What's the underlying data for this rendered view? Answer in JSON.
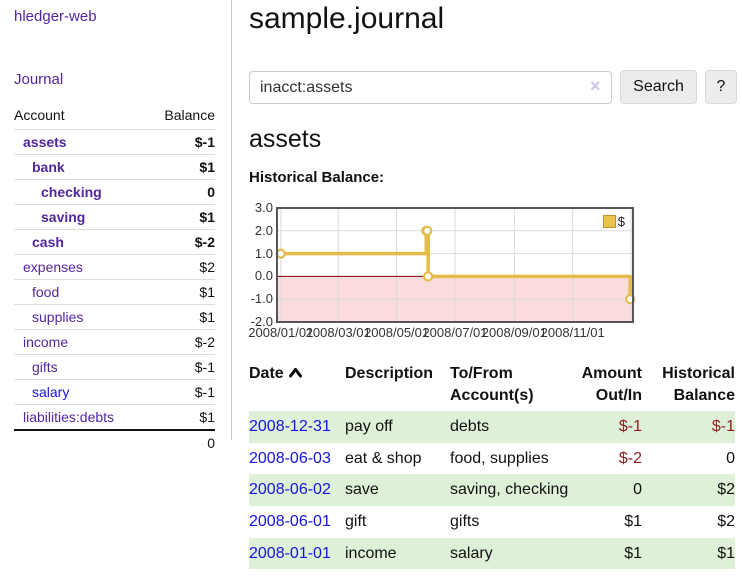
{
  "colors": {
    "purple": "#5326a0",
    "blue": "#1414dd",
    "neg_strong": "#8b0000",
    "neg_light": "#c9908e",
    "row_green": "#dff0d8",
    "chart_line": "#e3bd49",
    "neg_fill": "#fbdcdc",
    "zero_line": "#8b0000",
    "grid": "#d9d9d9",
    "chart_border": "#56565a"
  },
  "sidebar": {
    "app_title": "hledger-web",
    "nav_journal": "Journal",
    "accounts": {
      "col_account": "Account",
      "col_balance": "Balance",
      "rows": [
        {
          "name": "assets",
          "indent": 1,
          "bold": true,
          "link": "purple",
          "balance": "$-1",
          "bal_cls": "neg-strong"
        },
        {
          "name": "bank",
          "indent": 2,
          "bold": true,
          "link": "purple",
          "balance": "$1",
          "bal_cls": ""
        },
        {
          "name": "checking",
          "indent": 3,
          "bold": true,
          "link": "purple",
          "balance": "0",
          "bal_cls": ""
        },
        {
          "name": "saving",
          "indent": 3,
          "bold": true,
          "link": "purple",
          "balance": "$1",
          "bal_cls": ""
        },
        {
          "name": "cash",
          "indent": 2,
          "bold": true,
          "link": "purple",
          "balance": "$-2",
          "bal_cls": "neg-strong"
        },
        {
          "name": "expenses",
          "indent": 1,
          "bold": false,
          "link": "purple",
          "balance": "$2",
          "bal_cls": ""
        },
        {
          "name": "food",
          "indent": 2,
          "bold": false,
          "link": "purple",
          "balance": "$1",
          "bal_cls": ""
        },
        {
          "name": "supplies",
          "indent": 2,
          "bold": false,
          "link": "purple",
          "balance": "$1",
          "bal_cls": ""
        },
        {
          "name": "income",
          "indent": 1,
          "bold": false,
          "link": "purple",
          "balance": "$-2",
          "bal_cls": "neg-light"
        },
        {
          "name": "gifts",
          "indent": 2,
          "bold": false,
          "link": "purple",
          "balance": "$-1",
          "bal_cls": "neg-light"
        },
        {
          "name": "salary",
          "indent": 2,
          "bold": false,
          "link": "blue",
          "balance": "$-1",
          "bal_cls": "neg-light"
        },
        {
          "name": "liabilities:debts",
          "indent": 1,
          "bold": false,
          "link": "purple",
          "balance": "$1",
          "bal_cls": ""
        }
      ],
      "total": "0"
    }
  },
  "main": {
    "title": "sample.journal",
    "search": {
      "value": "inacct:assets",
      "clear": "×",
      "button": "Search",
      "help": "?"
    },
    "account_heading": "assets",
    "section_label": "Historical Balance:"
  },
  "chart_data": {
    "type": "line",
    "step": true,
    "title": "Historical Balance",
    "legend": "$",
    "legend_position": "top-right",
    "grid": true,
    "ylim": [
      -2,
      3
    ],
    "x_domain": [
      "2007-12-28",
      "2009-01-03"
    ],
    "series": [
      {
        "name": "$",
        "points": [
          [
            "2008-01-01",
            1
          ],
          [
            "2008-06-01",
            2
          ],
          [
            "2008-06-02",
            2
          ],
          [
            "2008-06-03",
            0
          ],
          [
            "2008-12-31",
            -1
          ]
        ]
      }
    ],
    "y_ticks": [
      {
        "v": 3,
        "label": "3.0"
      },
      {
        "v": 2,
        "label": "2.0"
      },
      {
        "v": 1,
        "label": "1.0"
      },
      {
        "v": 0,
        "label": "0.0"
      },
      {
        "v": -1,
        "label": "-1.0"
      },
      {
        "v": -2,
        "label": "-2.0"
      }
    ],
    "x_ticks": [
      {
        "date": "2008-01-01",
        "label": "2008/01/01"
      },
      {
        "date": "2008-03-01",
        "label": "2008/03/01"
      },
      {
        "date": "2008-05-01",
        "label": "2008/05/01"
      },
      {
        "date": "2008-07-01",
        "label": "2008/07/01"
      },
      {
        "date": "2008-09-01",
        "label": "2008/09/01"
      },
      {
        "date": "2008-11-01",
        "label": "2008/11/01"
      }
    ],
    "extra_gridlines": [
      "2009-01-01"
    ],
    "negative_region_shaded": true
  },
  "transactions": {
    "headers": {
      "date": "Date",
      "description": "Description",
      "accounts": "To/From Account(s)",
      "amount": "Amount Out/In",
      "balance": "Historical Balance"
    },
    "rows": [
      {
        "date": "2008-12-31",
        "desc": "pay off",
        "accounts": "debts",
        "amount": "$-1",
        "amount_neg": true,
        "balance": "$-1",
        "balance_neg": true
      },
      {
        "date": "2008-06-03",
        "desc": "eat & shop",
        "accounts": "food, supplies",
        "amount": "$-2",
        "amount_neg": true,
        "balance": "0",
        "balance_neg": false
      },
      {
        "date": "2008-06-02",
        "desc": "save",
        "accounts": "saving, checking",
        "amount": "0",
        "amount_neg": false,
        "balance": "$2",
        "balance_neg": false
      },
      {
        "date": "2008-06-01",
        "desc": "gift",
        "accounts": "gifts",
        "amount": "$1",
        "amount_neg": false,
        "balance": "$2",
        "balance_neg": false
      },
      {
        "date": "2008-01-01",
        "desc": "income",
        "accounts": "salary",
        "amount": "$1",
        "amount_neg": false,
        "balance": "$1",
        "balance_neg": false
      }
    ]
  }
}
